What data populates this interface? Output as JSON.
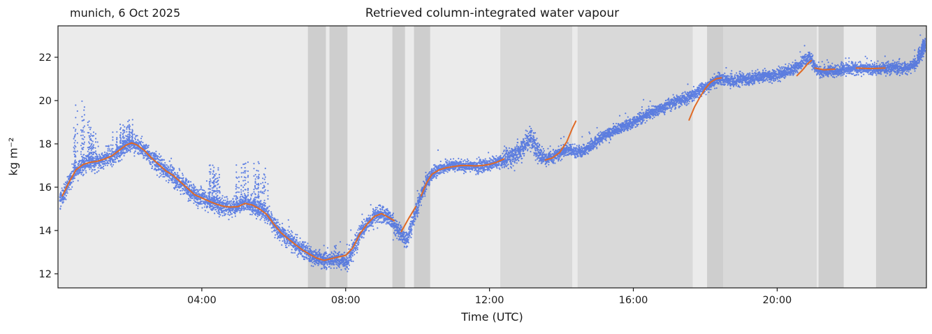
{
  "chart_data": {
    "type": "scatter",
    "title": "Retrieved column-integrated water vapour",
    "annotation": "munich, 6 Oct 2025",
    "xlabel": "Time (UTC)",
    "ylabel": "kg m⁻²",
    "xlim": [
      0,
      24.15
    ],
    "ylim": [
      11.35,
      23.45
    ],
    "xticks": [
      {
        "value": 4,
        "label": "04:00"
      },
      {
        "value": 8,
        "label": "08:00"
      },
      {
        "value": 12,
        "label": "12:00"
      },
      {
        "value": 16,
        "label": "16:00"
      },
      {
        "value": 20,
        "label": "20:00"
      }
    ],
    "yticks": [
      12,
      14,
      16,
      18,
      20,
      22
    ],
    "grid": false,
    "legend": "none",
    "colors": {
      "scatter": "#4169e1",
      "line": "#e06a25",
      "plot_bg": "#ebebeb",
      "band_medium": "#d9d9d9",
      "band_dark": "#cecece",
      "axis": "#1a1a1a"
    },
    "background_bands": [
      [
        6.95,
        7.45,
        "band_dark"
      ],
      [
        7.55,
        8.05,
        "band_dark"
      ],
      [
        9.3,
        9.65,
        "band_dark"
      ],
      [
        9.9,
        10.35,
        "band_dark"
      ],
      [
        12.3,
        14.3,
        "band_medium"
      ],
      [
        14.45,
        17.65,
        "band_medium"
      ],
      [
        18.05,
        18.5,
        "band_dark"
      ],
      [
        18.5,
        21.1,
        "band_medium"
      ],
      [
        21.15,
        21.85,
        "band_dark"
      ],
      [
        22.75,
        24.15,
        "band_dark"
      ]
    ],
    "series": [
      {
        "name": "retrieved water vapour (raw samples)",
        "type": "scatter",
        "color": "#4169e1",
        "noise": {
          "sigma_early": 0.2,
          "sigma_late": 0.13,
          "split": 10.3,
          "outlier_prob": 0.02
        },
        "sigma_regions": [
          [
            12.4,
            13.5,
            0.22
          ]
        ],
        "spike_regions": [
          [
            0.38,
            0.75,
            3.2
          ],
          [
            0.8,
            1.05,
            2.2
          ],
          [
            1.5,
            2.1,
            1.3
          ],
          [
            4.2,
            4.5,
            2.0
          ],
          [
            4.95,
            5.3,
            2.2
          ],
          [
            5.45,
            5.85,
            2.4
          ],
          [
            23.9,
            24.12,
            0.6
          ]
        ],
        "mean_points": [
          [
            0.05,
            15.4
          ],
          [
            0.2,
            15.8
          ],
          [
            0.35,
            16.4
          ],
          [
            0.5,
            16.8
          ],
          [
            0.7,
            17.0
          ],
          [
            0.9,
            17.15
          ],
          [
            1.1,
            17.2
          ],
          [
            1.3,
            17.3
          ],
          [
            1.5,
            17.4
          ],
          [
            1.7,
            17.65
          ],
          [
            1.9,
            17.95
          ],
          [
            2.05,
            18.05
          ],
          [
            2.2,
            17.95
          ],
          [
            2.4,
            17.7
          ],
          [
            2.6,
            17.35
          ],
          [
            2.8,
            17.05
          ],
          [
            3.0,
            16.75
          ],
          [
            3.2,
            16.55
          ],
          [
            3.4,
            16.25
          ],
          [
            3.6,
            15.95
          ],
          [
            3.8,
            15.65
          ],
          [
            4.0,
            15.5
          ],
          [
            4.2,
            15.35
          ],
          [
            4.4,
            15.2
          ],
          [
            4.6,
            15.1
          ],
          [
            4.8,
            15.05
          ],
          [
            5.0,
            15.1
          ],
          [
            5.2,
            15.3
          ],
          [
            5.35,
            15.2
          ],
          [
            5.5,
            15.05
          ],
          [
            5.7,
            14.9
          ],
          [
            5.85,
            14.7
          ],
          [
            6.0,
            14.3
          ],
          [
            6.2,
            13.9
          ],
          [
            6.4,
            13.6
          ],
          [
            6.6,
            13.35
          ],
          [
            6.8,
            13.1
          ],
          [
            7.0,
            12.9
          ],
          [
            7.2,
            12.7
          ],
          [
            7.4,
            12.6
          ],
          [
            7.6,
            12.7
          ],
          [
            7.75,
            12.75
          ],
          [
            7.9,
            12.6
          ],
          [
            8.05,
            12.6
          ],
          [
            8.2,
            13.1
          ],
          [
            8.4,
            13.85
          ],
          [
            8.6,
            14.3
          ],
          [
            8.8,
            14.65
          ],
          [
            9.0,
            14.8
          ],
          [
            9.2,
            14.6
          ],
          [
            9.4,
            14.2
          ],
          [
            9.6,
            13.7
          ],
          [
            9.7,
            13.55
          ],
          [
            9.8,
            14.0
          ],
          [
            9.95,
            14.9
          ],
          [
            10.1,
            15.6
          ],
          [
            10.25,
            16.2
          ],
          [
            10.4,
            16.6
          ],
          [
            10.6,
            16.85
          ],
          [
            10.8,
            16.95
          ],
          [
            11.0,
            17.0
          ],
          [
            11.3,
            17.0
          ],
          [
            11.6,
            16.95
          ],
          [
            11.9,
            17.0
          ],
          [
            12.1,
            17.1
          ],
          [
            12.3,
            17.2
          ],
          [
            12.5,
            17.35
          ],
          [
            12.7,
            17.5
          ],
          [
            12.9,
            17.75
          ],
          [
            13.05,
            18.1
          ],
          [
            13.15,
            18.25
          ],
          [
            13.3,
            17.8
          ],
          [
            13.45,
            17.45
          ],
          [
            13.6,
            17.3
          ],
          [
            13.8,
            17.4
          ],
          [
            14.0,
            17.6
          ],
          [
            14.2,
            17.75
          ],
          [
            14.4,
            17.6
          ],
          [
            14.6,
            17.65
          ],
          [
            14.8,
            17.85
          ],
          [
            15.0,
            18.15
          ],
          [
            15.2,
            18.4
          ],
          [
            15.4,
            18.55
          ],
          [
            15.6,
            18.7
          ],
          [
            15.8,
            18.85
          ],
          [
            16.0,
            19.0
          ],
          [
            16.2,
            19.15
          ],
          [
            16.4,
            19.35
          ],
          [
            16.6,
            19.5
          ],
          [
            16.8,
            19.65
          ],
          [
            17.0,
            19.85
          ],
          [
            17.2,
            19.95
          ],
          [
            17.4,
            20.05
          ],
          [
            17.6,
            20.2
          ],
          [
            17.8,
            20.4
          ],
          [
            18.0,
            20.6
          ],
          [
            18.2,
            20.85
          ],
          [
            18.4,
            21.0
          ],
          [
            18.6,
            20.95
          ],
          [
            18.8,
            20.9
          ],
          [
            19.0,
            21.0
          ],
          [
            19.2,
            21.0
          ],
          [
            19.4,
            21.05
          ],
          [
            19.6,
            21.1
          ],
          [
            19.8,
            21.15
          ],
          [
            20.0,
            21.2
          ],
          [
            20.2,
            21.3
          ],
          [
            20.4,
            21.4
          ],
          [
            20.6,
            21.6
          ],
          [
            20.8,
            21.95
          ],
          [
            20.9,
            22.05
          ],
          [
            21.0,
            21.7
          ],
          [
            21.1,
            21.4
          ],
          [
            21.3,
            21.3
          ],
          [
            21.5,
            21.35
          ],
          [
            21.7,
            21.4
          ],
          [
            21.9,
            21.45
          ],
          [
            22.1,
            21.5
          ],
          [
            22.3,
            21.45
          ],
          [
            22.5,
            21.5
          ],
          [
            22.7,
            21.45
          ],
          [
            22.9,
            21.5
          ],
          [
            23.1,
            21.5
          ],
          [
            23.3,
            21.55
          ],
          [
            23.5,
            21.5
          ],
          [
            23.7,
            21.6
          ],
          [
            23.9,
            21.8
          ],
          [
            24.05,
            22.3
          ],
          [
            24.12,
            22.5
          ]
        ]
      },
      {
        "name": "smoothed retrieval",
        "type": "line",
        "color": "#e06a25",
        "segments": [
          [
            [
              0.12,
              15.6
            ],
            [
              0.3,
              16.2
            ],
            [
              0.5,
              16.8
            ],
            [
              0.7,
              17.05
            ],
            [
              0.9,
              17.15
            ],
            [
              1.1,
              17.2
            ],
            [
              1.3,
              17.3
            ],
            [
              1.5,
              17.45
            ],
            [
              1.7,
              17.7
            ],
            [
              1.9,
              17.95
            ],
            [
              2.05,
              18.05
            ],
            [
              2.2,
              17.95
            ],
            [
              2.4,
              17.7
            ],
            [
              2.6,
              17.35
            ],
            [
              2.8,
              17.05
            ],
            [
              3.0,
              16.75
            ],
            [
              3.2,
              16.55
            ],
            [
              3.4,
              16.25
            ],
            [
              3.6,
              15.95
            ],
            [
              3.8,
              15.65
            ],
            [
              4.0,
              15.5
            ],
            [
              4.2,
              15.35
            ],
            [
              4.4,
              15.22
            ],
            [
              4.6,
              15.12
            ],
            [
              4.8,
              15.08
            ],
            [
              5.0,
              15.1
            ],
            [
              5.2,
              15.25
            ],
            [
              5.4,
              15.18
            ],
            [
              5.6,
              15.0
            ],
            [
              5.8,
              14.75
            ],
            [
              6.0,
              14.3
            ],
            [
              6.2,
              13.9
            ],
            [
              6.4,
              13.62
            ],
            [
              6.6,
              13.35
            ],
            [
              6.8,
              13.1
            ],
            [
              7.0,
              12.9
            ],
            [
              7.2,
              12.72
            ],
            [
              7.4,
              12.62
            ],
            [
              7.6,
              12.7
            ],
            [
              7.8,
              12.78
            ],
            [
              8.0,
              12.85
            ],
            [
              8.2,
              13.2
            ],
            [
              8.4,
              13.85
            ],
            [
              8.6,
              14.3
            ],
            [
              8.8,
              14.65
            ],
            [
              9.0,
              14.78
            ],
            [
              9.2,
              14.6
            ],
            [
              9.35,
              14.45
            ]
          ],
          [
            [
              9.55,
              13.95
            ],
            [
              9.75,
              14.55
            ],
            [
              9.95,
              15.1
            ]
          ],
          [
            [
              10.1,
              15.6
            ],
            [
              10.25,
              16.2
            ],
            [
              10.4,
              16.6
            ],
            [
              10.6,
              16.8
            ],
            [
              10.8,
              16.9
            ],
            [
              11.0,
              16.95
            ],
            [
              11.2,
              17.0
            ],
            [
              11.4,
              17.0
            ],
            [
              11.6,
              16.98
            ],
            [
              11.8,
              17.0
            ],
            [
              12.0,
              17.05
            ],
            [
              12.2,
              17.15
            ],
            [
              12.4,
              17.3
            ]
          ],
          [
            [
              13.55,
              17.25
            ],
            [
              13.75,
              17.35
            ],
            [
              13.95,
              17.6
            ],
            [
              14.15,
              18.1
            ],
            [
              14.3,
              18.7
            ],
            [
              14.4,
              19.05
            ]
          ],
          [
            [
              17.55,
              19.1
            ],
            [
              17.7,
              19.7
            ],
            [
              17.85,
              20.15
            ],
            [
              18.0,
              20.55
            ],
            [
              18.15,
              20.85
            ],
            [
              18.3,
              21.0
            ],
            [
              18.45,
              21.05
            ]
          ],
          [
            [
              20.55,
              21.15
            ],
            [
              20.7,
              21.4
            ],
            [
              20.85,
              21.7
            ],
            [
              20.95,
              21.85
            ]
          ],
          [
            [
              21.05,
              21.5
            ],
            [
              21.3,
              21.42
            ],
            [
              21.6,
              21.45
            ]
          ],
          [
            [
              22.2,
              21.5
            ],
            [
              22.6,
              21.48
            ],
            [
              23.0,
              21.5
            ]
          ]
        ]
      }
    ]
  }
}
